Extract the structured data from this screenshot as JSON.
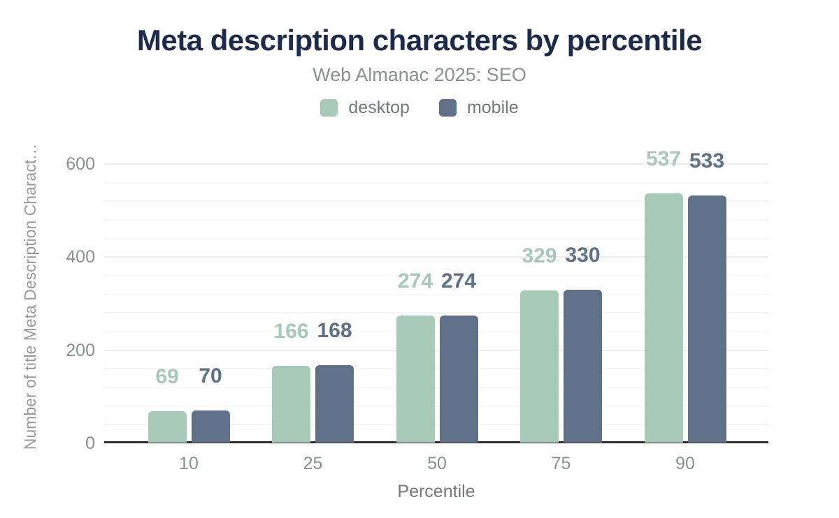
{
  "header": {
    "title": "Meta description characters by percentile",
    "subtitle": "Web Almanac 2025: SEO"
  },
  "colors": {
    "title_navy": "#1c2b4d",
    "desktop_green": "#a6c9b8",
    "mobile_slate": "#5f7089",
    "axis_line": "#2e2e2e",
    "tick_gray": "#8b8f94"
  },
  "legend": {
    "items": [
      {
        "label": "desktop",
        "color": "#a6c9b8"
      },
      {
        "label": "mobile",
        "color": "#5f7089"
      }
    ]
  },
  "axes": {
    "xlabel": "Percentile",
    "ylabel": "Number of title Meta Description Charact…",
    "yticks": [
      0,
      200,
      400,
      600
    ],
    "xticks": [
      "10",
      "25",
      "50",
      "75",
      "90"
    ]
  },
  "chart_data": {
    "type": "bar",
    "title": "Meta description characters by percentile",
    "subtitle": "Web Almanac 2025: SEO",
    "categories": [
      "10",
      "25",
      "50",
      "75",
      "90"
    ],
    "series": [
      {
        "name": "desktop",
        "color": "#a6c9b8",
        "values": [
          69,
          166,
          274,
          329,
          537
        ]
      },
      {
        "name": "mobile",
        "color": "#5f7089",
        "values": [
          70,
          168,
          274,
          330,
          533
        ]
      }
    ],
    "xlabel": "Percentile",
    "ylabel": "Number of title Meta Description Charact…",
    "ylim": [
      0,
      600
    ],
    "yticks": [
      0,
      200,
      400,
      600
    ],
    "grid": {
      "orientation": "horizontal",
      "minor_every": 40,
      "major_every": 200
    },
    "legend_position": "top-center",
    "value_labels": true
  }
}
